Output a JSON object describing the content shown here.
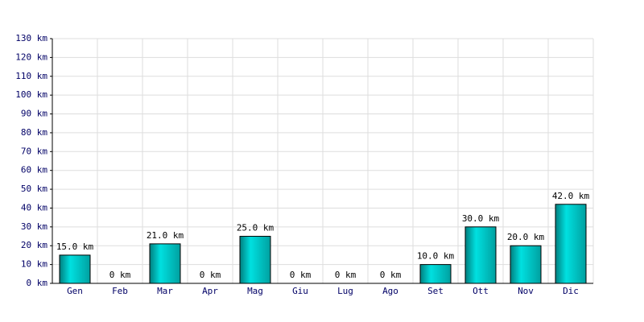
{
  "chart_data": {
    "type": "bar",
    "categories": [
      "Gen",
      "Feb",
      "Mar",
      "Apr",
      "Mag",
      "Giu",
      "Lug",
      "Ago",
      "Set",
      "Ott",
      "Nov",
      "Dic"
    ],
    "values": [
      15,
      0,
      21,
      0,
      25,
      0,
      0,
      0,
      10,
      30,
      20,
      42
    ],
    "value_labels": [
      "15.0 km",
      "0 km",
      "21.0 km",
      "0 km",
      "25.0 km",
      "0 km",
      "0 km",
      "0 km",
      "10.0 km",
      "30.0 km",
      "20.0 km",
      "42.0 km"
    ],
    "color": "#00e0e0",
    "ylim": [
      0,
      130
    ],
    "yticks": [
      {
        "value": 0,
        "label": "0 km"
      },
      {
        "value": 10,
        "label": "10 km"
      },
      {
        "value": 20,
        "label": "20 km"
      },
      {
        "value": 30,
        "label": "30 km"
      },
      {
        "value": 40,
        "label": "40 km"
      },
      {
        "value": 50,
        "label": "50 km"
      },
      {
        "value": 60,
        "label": "60 km"
      },
      {
        "value": 70,
        "label": "70 km"
      },
      {
        "value": 80,
        "label": "80 km"
      },
      {
        "value": 90,
        "label": "90 km"
      },
      {
        "value": 100,
        "label": "100 km"
      },
      {
        "value": 110,
        "label": "110 km"
      },
      {
        "value": 120,
        "label": "120 km"
      },
      {
        "value": 130,
        "label": "130 km"
      }
    ],
    "grid": true
  }
}
